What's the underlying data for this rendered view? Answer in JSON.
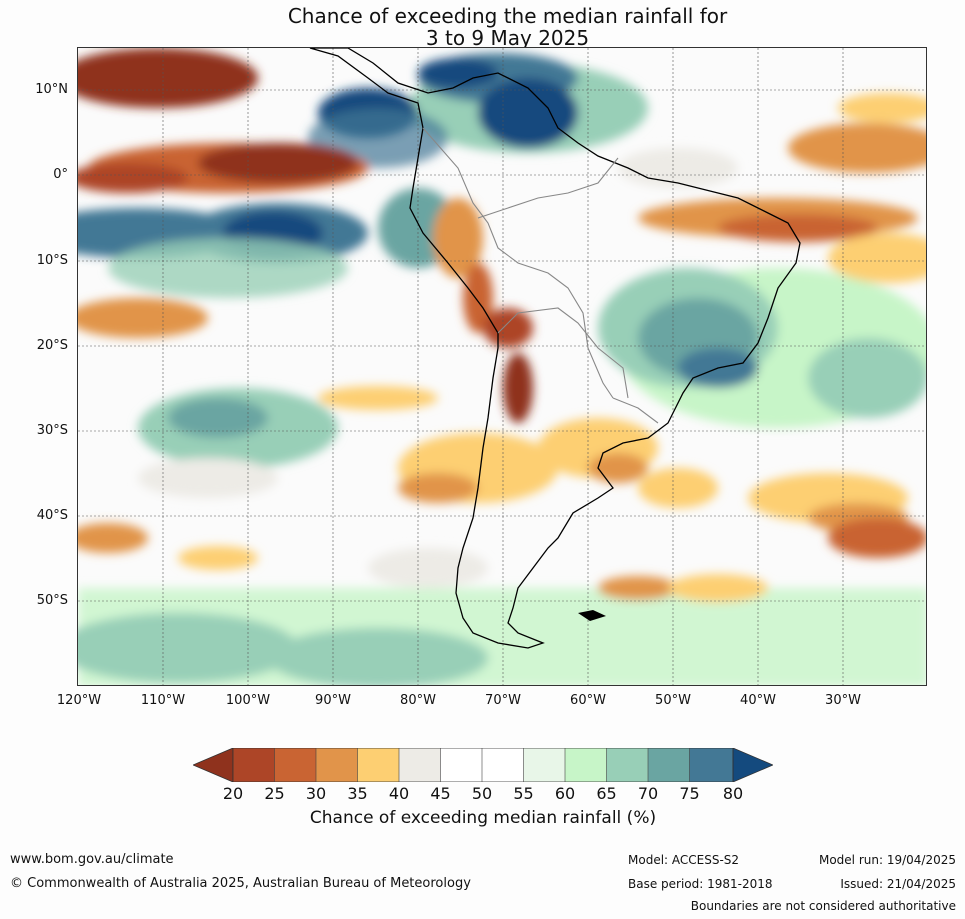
{
  "title": {
    "line1": "Chance of exceeding the median rainfall for",
    "line2": "3 to 9 May 2025"
  },
  "map": {
    "lat_labels": [
      "10°N",
      "0°",
      "10°S",
      "20°S",
      "30°S",
      "40°S",
      "50°S"
    ],
    "lon_labels": [
      "120°W",
      "110°W",
      "100°W",
      "90°W",
      "80°W",
      "70°W",
      "60°W",
      "50°W",
      "40°W",
      "30°W"
    ]
  },
  "colorbar": {
    "ticks": [
      "20",
      "25",
      "30",
      "35",
      "40",
      "45",
      "50",
      "55",
      "60",
      "65",
      "70",
      "75",
      "80"
    ],
    "label": "Chance of exceeding median rainfall (%)",
    "colors": {
      "below_20": "#8f321d",
      "20_25": "#ad4527",
      "25_30": "#c96433",
      "30_35": "#e1944a",
      "35_40": "#fdcf72",
      "40_45": "#edebe6",
      "45_50": "#ffffff",
      "50_55": "#ffffff",
      "55_60": "#e8f6e8",
      "60_65": "#c7f5c8",
      "65_70": "#98cfb7",
      "70_75": "#6aa5a2",
      "75_80": "#437895",
      "above_80": "#144a7e"
    }
  },
  "footer": {
    "website": "www.bom.gov.au/climate",
    "copyright": "© Commonwealth of Australia 2025, Australian Bureau of Meteorology",
    "model": "Model: ACCESS-S2",
    "base_period": "Base period: 1981-2018",
    "model_run": "Model run: 19/04/2025",
    "issued": "Issued: 21/04/2025",
    "disclaimer": "Boundaries are not considered authoritative"
  }
}
